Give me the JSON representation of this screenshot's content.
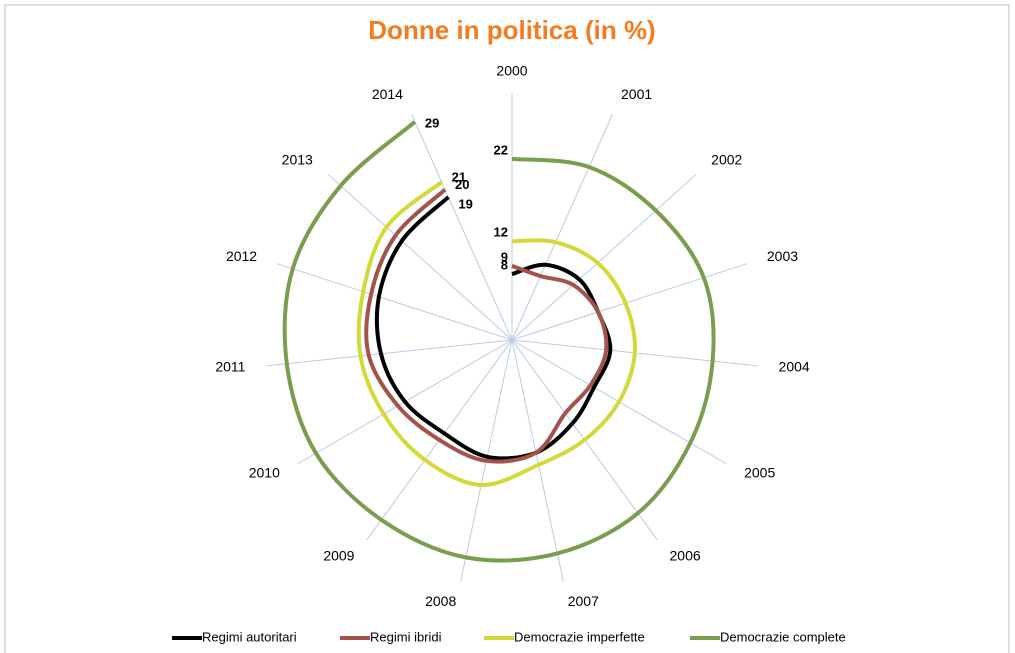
{
  "chart_data": {
    "type": "radar",
    "title": "Donne in politica (in %)",
    "categories": [
      "2000",
      "2001",
      "2002",
      "2003",
      "2004",
      "2005",
      "2006",
      "2007",
      "2008",
      "2009",
      "2010",
      "2011",
      "2012",
      "2013",
      "2014"
    ],
    "rlim": [
      0,
      30
    ],
    "legend": "bottom",
    "series": [
      {
        "name": "Regimi autoritari",
        "color": "#000000",
        "values": [
          8,
          10,
          11,
          11,
          12,
          11.5,
          12.5,
          14,
          14.5,
          14,
          15,
          16,
          17,
          18,
          19
        ]
      },
      {
        "name": "Regimi ibridi",
        "color": "#a5524a",
        "values": [
          9,
          8.5,
          10,
          11,
          11.5,
          11,
          11,
          14,
          15,
          15,
          16,
          17.5,
          18,
          19,
          20
        ]
      },
      {
        "name": "Democrazie imperfette",
        "color": "#d4d93a",
        "values": [
          12,
          13,
          14,
          14.5,
          15,
          15,
          15,
          15.5,
          18,
          18,
          18,
          18.5,
          19,
          20.5,
          21
        ]
      },
      {
        "name": "Democrazie complete",
        "color": "#7a9e4e",
        "values": [
          22,
          23,
          23.5,
          24.5,
          24.5,
          25,
          26,
          26.5,
          27,
          27,
          27.5,
          27.5,
          28,
          28,
          29
        ]
      }
    ]
  }
}
